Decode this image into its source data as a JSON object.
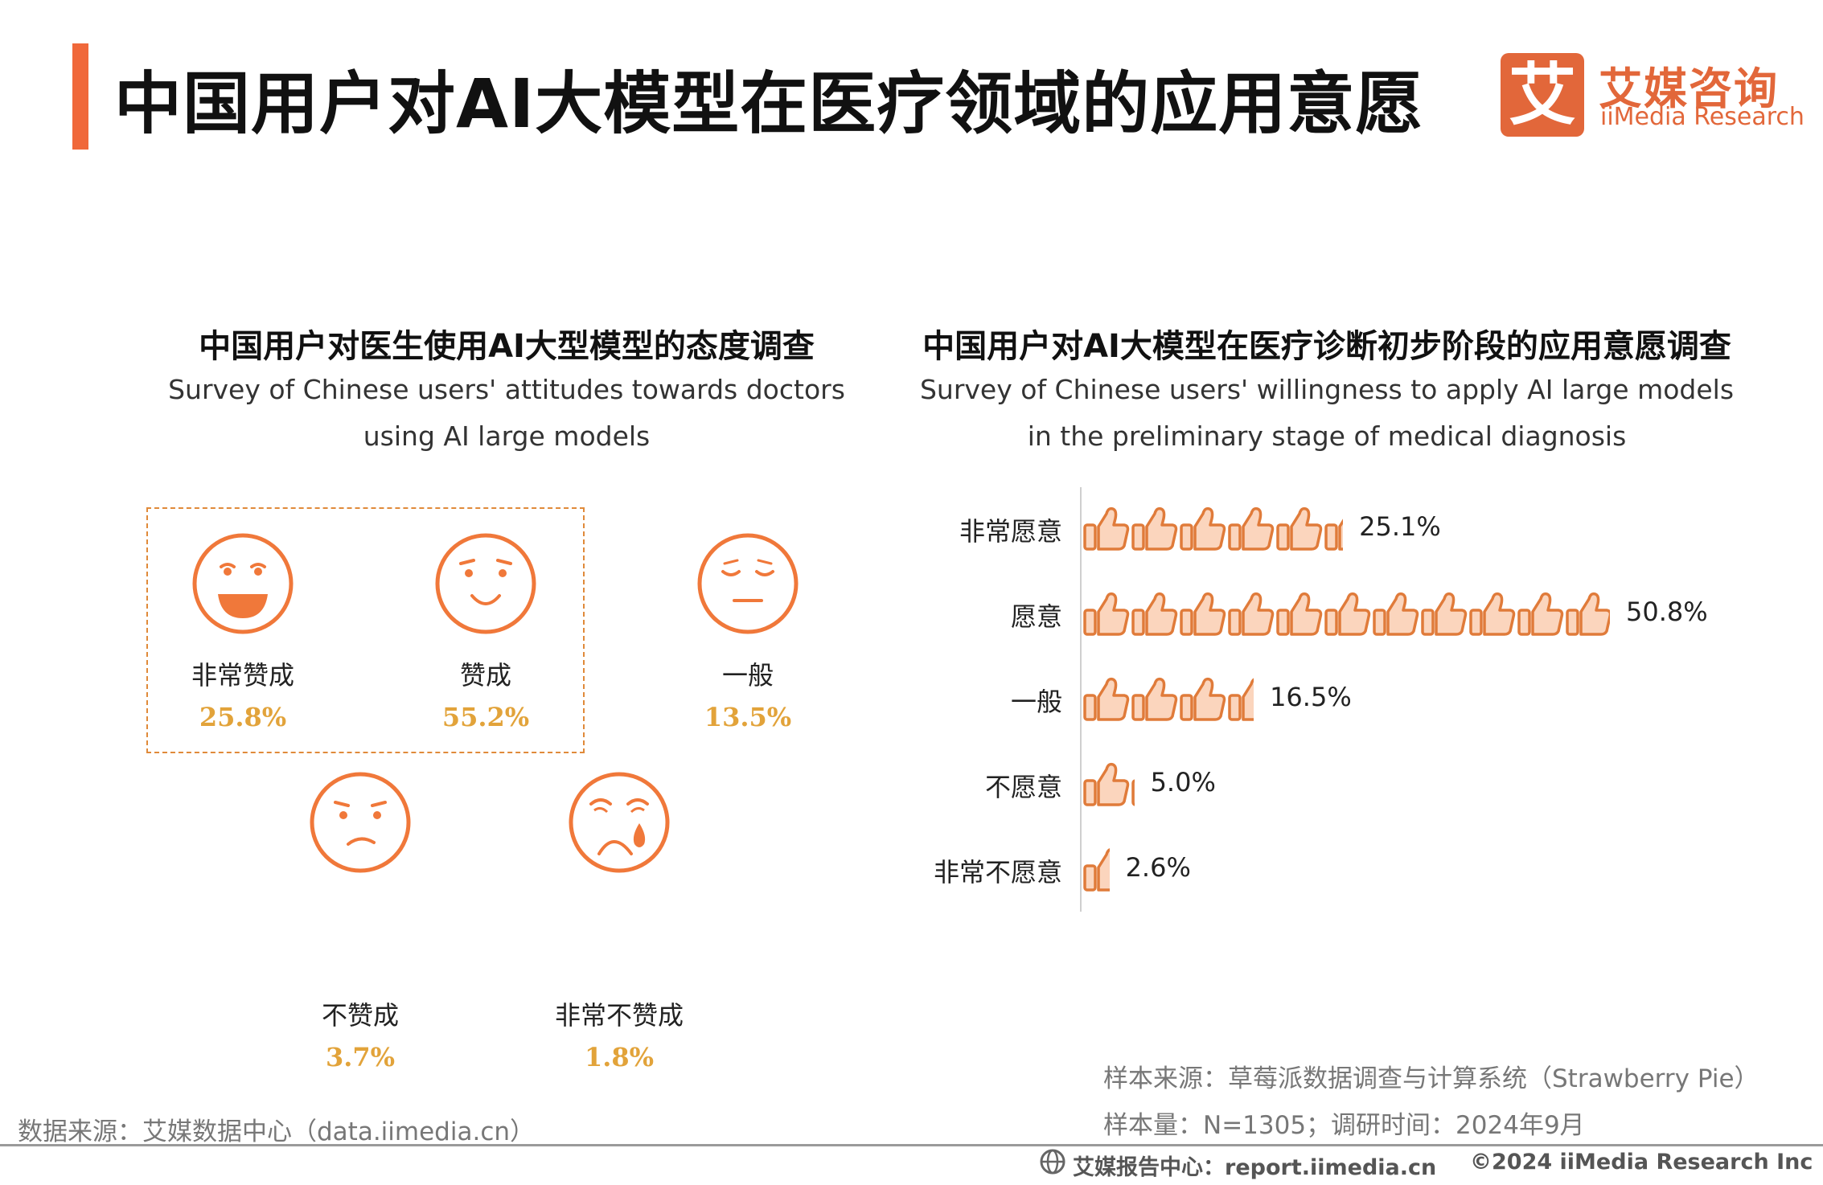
{
  "header": {
    "title": "中国用户对AI大模型在医疗领域的应用意愿",
    "logo_glyph": "艾",
    "logo_cn": "艾媒咨询",
    "logo_en": "iiMedia Research",
    "accent_color": "#f0683a"
  },
  "left_panel": {
    "title_cn": "中国用户对医生使用AI大型模型的态度调查",
    "title_en": "Survey of Chinese users' attitudes towards doctors using AI large models",
    "faces": [
      {
        "label": "非常赞成",
        "value": "25.8%",
        "icon": "laughing-face-icon"
      },
      {
        "label": "赞成",
        "value": "55.2%",
        "icon": "smiling-face-icon"
      },
      {
        "label": "一般",
        "value": "13.5%",
        "icon": "neutral-face-icon"
      },
      {
        "label": "不赞成",
        "value": "3.7%",
        "icon": "frowning-face-icon"
      },
      {
        "label": "非常不赞成",
        "value": "1.8%",
        "icon": "crying-face-icon"
      }
    ],
    "source": "数据来源：艾媒数据中心（data.iimedia.cn）"
  },
  "right_panel": {
    "title_cn": "中国用户对AI大模型在医疗诊断初步阶段的应用意愿调查",
    "title_en": "Survey of Chinese users' willingness to apply AI large models in the preliminary stage of medical diagnosis",
    "sample_source": "样本来源：草莓派数据调查与计算系统（Strawberry Pie）",
    "sample_info": "样本量：N=1305；调研时间：2024年9月"
  },
  "chart_data": [
    {
      "type": "pictograph",
      "title": "中国用户对医生使用AI大型模型的态度调查",
      "categories": [
        "非常赞成",
        "赞成",
        "一般",
        "不赞成",
        "非常不赞成"
      ],
      "values": [
        25.8,
        55.2,
        13.5,
        3.7,
        1.8
      ],
      "unit": "%",
      "colors": {
        "icon": "#f0783a",
        "value_text": "#e2a33a"
      }
    },
    {
      "type": "bar",
      "orientation": "horizontal",
      "mark": "thumbs-up-icon",
      "title": "中国用户对AI大模型在医疗诊断初步阶段的应用意愿调查",
      "categories": [
        "非常愿意",
        "愿意",
        "一般",
        "不愿意",
        "非常不愿意"
      ],
      "values": [
        25.1,
        50.8,
        16.5,
        5.0,
        2.6
      ],
      "value_labels": [
        "25.1%",
        "50.8%",
        "16.5%",
        "5.0%",
        "2.6%"
      ],
      "unit": "%",
      "xlim": [
        0,
        50.8
      ],
      "grid": false,
      "colors": {
        "stroke": "#e07b3a",
        "fill": "#fbd5bd"
      }
    }
  ],
  "footer": {
    "report_site": "艾媒报告中心：report.iimedia.cn",
    "copyright": "©2024  iiMedia Research  Inc"
  }
}
